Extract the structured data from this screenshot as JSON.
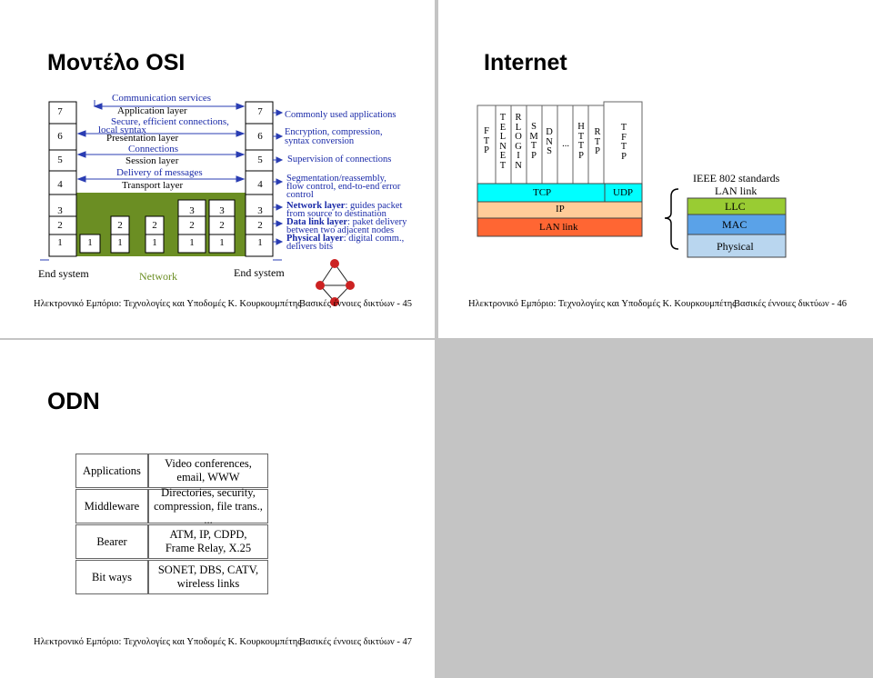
{
  "slide1": {
    "title": "Μοντέλο OSI",
    "layers_left": [
      "7",
      "6",
      "5",
      "4",
      "3",
      "2",
      "1"
    ],
    "layers_right": [
      "7",
      "6",
      "5",
      "4",
      "3",
      "2",
      "1"
    ],
    "services": {
      "communication": "Communication services",
      "application": "Application layer",
      "secure_1": "Secure, efficient connections,",
      "secure_2": "local syntax",
      "presentation": "Presentation layer",
      "connections": "Connections",
      "session": "Session layer",
      "delivery": "Delivery of messages",
      "transport": "Transport layer"
    },
    "network_numbers": {
      "row3": [
        "3",
        "3"
      ],
      "row2": [
        "2",
        "2",
        "2",
        "2"
      ],
      "row1": [
        "1",
        "1",
        "1",
        "1",
        "1"
      ]
    },
    "descriptions": {
      "d7": "Commonly used applications",
      "d6a": "Encryption, compression,",
      "d6b": "syntax conversion",
      "d5": "Supervision of connections",
      "d4a": "Segmentation/reassembly,",
      "d4b": "flow control, end-to-end error",
      "d4c": "control",
      "d3a_bold": "Network layer",
      "d3a_rest": ": guides packet",
      "d3b": "from source to destination",
      "d2a_bold": "Data link layer",
      "d2a_rest": ": paket delivery",
      "d2b": "between two adjacent nodes",
      "d1a_bold": "Physical layer",
      "d1a_rest": ": digital comm.,",
      "d1b": "delivers bits"
    },
    "end_system_left": "End system",
    "network_label": "Network",
    "end_system_right": "End system",
    "footer": {
      "left": "Ηλεκτρονικό Εμπόριο: Τεχνολογίες και Υποδομές   Κ. Κουρκουμπέτης",
      "right": "Βασικές έννοιες δικτύων - 45"
    }
  },
  "slide2": {
    "title": "Internet",
    "apps": [
      {
        "name": "ftp",
        "letters": "F\nT\nP"
      },
      {
        "name": "telnet",
        "letters": "T\nE\nL\nN\nE\nT"
      },
      {
        "name": "rlogin",
        "letters": "R\nL\nO\nG\nI\nN"
      },
      {
        "name": "smtp",
        "letters": "S\nM\nT\nP"
      },
      {
        "name": "dns",
        "letters": "D\nN\nS"
      },
      {
        "name": "ellipsis",
        "letters": "..."
      },
      {
        "name": "http",
        "letters": "H\nT\nT\nP"
      },
      {
        "name": "rtp",
        "letters": "R\nT\nP"
      },
      {
        "name": "tftp",
        "letters": "T\nF\nT\nP"
      }
    ],
    "tcp": "TCP",
    "udp": "UDP",
    "ip": "IP",
    "lan_link": "LAN link",
    "ieee": "IEEE 802 standards",
    "ieee_lan": "LAN link",
    "llc": "LLC",
    "mac": "MAC",
    "physical": "Physical",
    "colors": {
      "cyan": "#00ffff",
      "peach": "#ffcc99",
      "orange": "#ff6633",
      "green": "#99cc33",
      "blue": "#5aa2e8",
      "lightblue": "#b9d6ef"
    },
    "footer": {
      "left": "Ηλεκτρονικό Εμπόριο: Τεχνολογίες και Υποδομές   Κ. Κουρκουμπέτης",
      "right": "Βασικές έννοιες δικτύων - 46"
    }
  },
  "slide3": {
    "title": "ODN",
    "rows": [
      {
        "label": "Applications",
        "desc_1": "Video conferences,",
        "desc_2": "email, WWW"
      },
      {
        "label": "Middleware",
        "desc_1": "Directories, security,",
        "desc_2": "compression, file trans., ..."
      },
      {
        "label": "Bearer",
        "desc_1": "ATM, IP, CDPD,",
        "desc_2": "Frame Relay, X.25"
      },
      {
        "label": "Bit ways",
        "desc_1": "SONET, DBS, CATV,",
        "desc_2": "wireless links"
      }
    ],
    "footer": {
      "left": "Ηλεκτρονικό Εμπόριο: Τεχνολογίες και Υποδομές   Κ. Κουρκουμπέτης",
      "right": "Βασικές έννοιες δικτύων - 47"
    }
  }
}
